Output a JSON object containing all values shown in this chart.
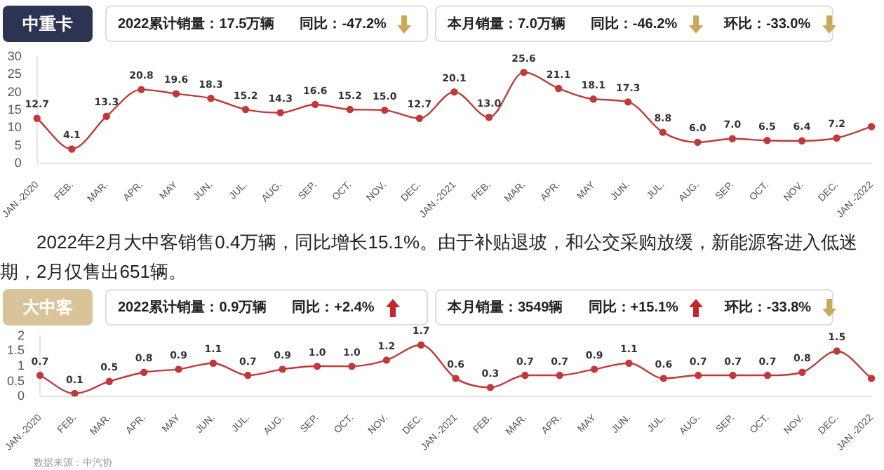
{
  "chart_data": [
    {
      "type": "line",
      "title": "中重卡",
      "color": "#c0393b",
      "marker": "circle",
      "grid": false,
      "ylim": [
        0,
        30
      ],
      "yticks": [
        0,
        5,
        10,
        15,
        20,
        25,
        30
      ],
      "categories": [
        "JAN.-2020",
        "FEB.",
        "MAR.",
        "APR.",
        "MAY",
        "JUN.",
        "JUL.",
        "AUG.",
        "SEP.",
        "OCT.",
        "NOV.",
        "DEC.",
        "JAN.-2021",
        "FEB.",
        "MAR.",
        "APR.",
        "MAY",
        "JUN.",
        "JUL.",
        "AUG.",
        "SEP.",
        "OCT.",
        "NOV.",
        "DEC.",
        "JAN.-2022"
      ],
      "values": [
        12.7,
        4.1,
        13.3,
        20.8,
        19.6,
        18.3,
        15.2,
        14.3,
        16.6,
        15.2,
        15.0,
        12.7,
        20.1,
        13.0,
        25.6,
        21.1,
        18.1,
        17.3,
        8.8,
        6.0,
        7.0,
        6.5,
        6.4,
        7.2,
        10.4
      ],
      "value_labels": [
        "12.7",
        "4.1",
        "13.3",
        "20.8",
        "19.6",
        "18.3",
        "15.2",
        "14.3",
        "16.6",
        "15.2",
        "15.0",
        "12.7",
        "20.1",
        "13.0",
        "25.6",
        "21.1",
        "18.1",
        "17.3",
        "8.8",
        "6.0",
        "7.0",
        "6.5",
        "6.4",
        "7.2",
        null
      ],
      "annotations": [
        "2022累计销量：17.5万辆",
        "同比：-47.2%",
        "本月销量：7.0万辆",
        "同比：-46.2%",
        "环比：-33.0%",
        "2022年2月大中客销售0.4万辆，同比增长15.1%。由于补贴退坡，和公交采购放缓，新能源客进入低迷期，2月仅售出651辆。"
      ]
    },
    {
      "type": "line",
      "title": "大中客",
      "color": "#c0393b",
      "marker": "circle",
      "grid": false,
      "ylim": [
        0,
        2
      ],
      "yticks": [
        0,
        0.5,
        1,
        1.5,
        2
      ],
      "categories": [
        "JAN.-2020",
        "FEB.",
        "MAR.",
        "APR.",
        "MAY",
        "JUN.",
        "JUL.",
        "AUG.",
        "SEP.",
        "OCT.",
        "NOV.",
        "DEC.",
        "JAN.-2021",
        "FEB.",
        "MAR.",
        "APR.",
        "MAY",
        "JUN.",
        "JUL.",
        "AUG.",
        "SEP.",
        "OCT.",
        "NOV.",
        "DEC.",
        "JAN.-2022"
      ],
      "values": [
        0.7,
        0.1,
        0.5,
        0.8,
        0.9,
        1.1,
        0.7,
        0.9,
        1.0,
        1.0,
        1.2,
        1.7,
        0.6,
        0.3,
        0.7,
        0.7,
        0.9,
        1.1,
        0.6,
        0.7,
        0.7,
        0.7,
        0.8,
        1.5,
        0.6
      ],
      "value_labels": [
        "0.7",
        "0.1",
        "0.5",
        "0.8",
        "0.9",
        "1.1",
        "0.7",
        "0.9",
        "1.0",
        "1.0",
        "1.2",
        "1.7",
        "0.6",
        "0.3",
        "0.7",
        "0.7",
        "0.9",
        "1.1",
        "0.6",
        "0.7",
        "0.7",
        "0.7",
        "0.8",
        "1.5",
        null
      ],
      "annotations": [
        "2022累计销量：0.9万辆",
        "同比：+2.4%",
        "本月销量：3549辆",
        "同比：+15.1%",
        "环比：-33.8%",
        "数据来源：中汽协"
      ]
    }
  ]
}
